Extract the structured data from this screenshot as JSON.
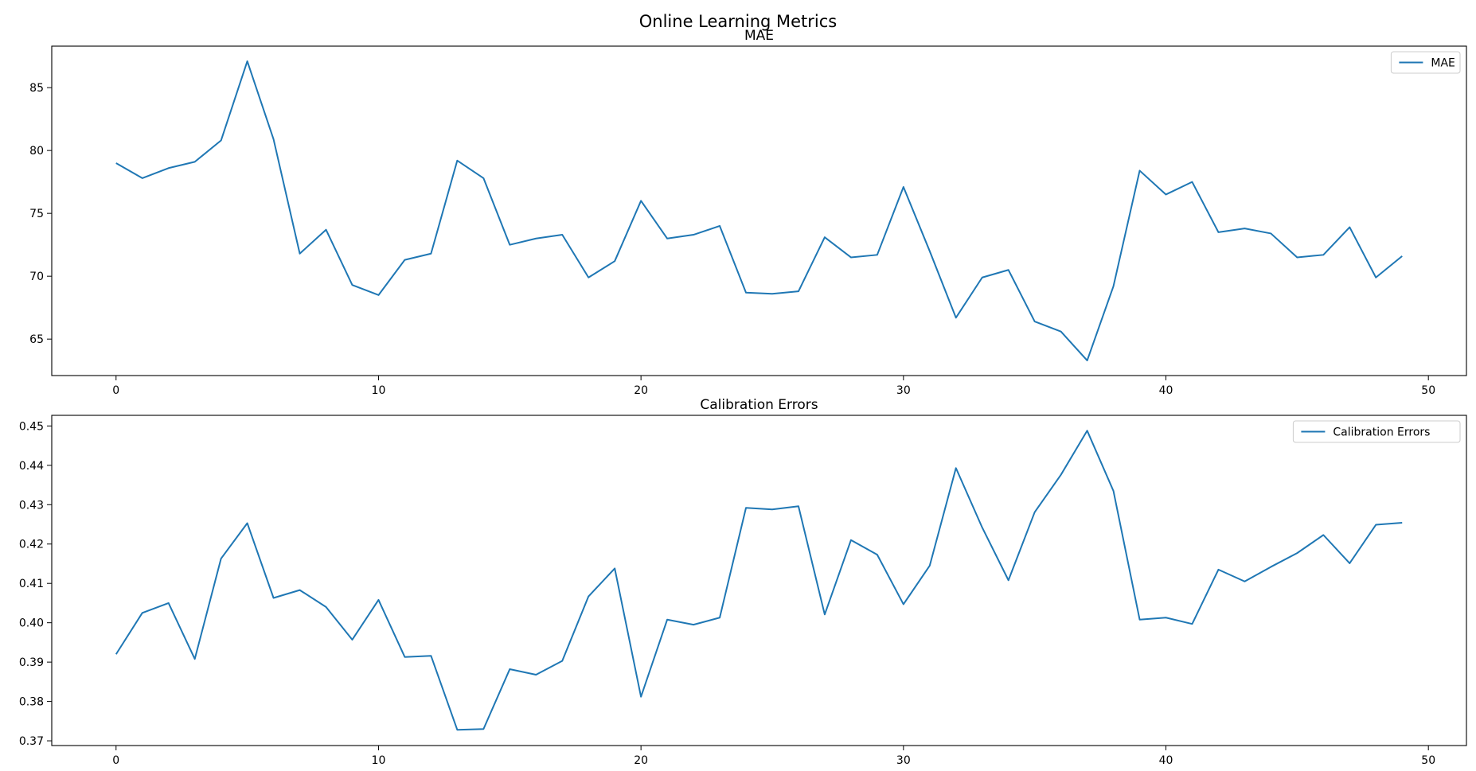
{
  "figure": {
    "title": "Online Learning Metrics"
  },
  "colors": {
    "line": "#1f77b4",
    "axis": "#000000",
    "background": "#ffffff"
  },
  "chart_data": [
    {
      "type": "line",
      "title": "MAE",
      "xlabel": "",
      "ylabel": "",
      "xlim": [
        -2.45,
        51.45
      ],
      "ylim": [
        62.1,
        88.3
      ],
      "xticks": [
        0,
        10,
        20,
        30,
        40,
        50
      ],
      "yticks": [
        65,
        70,
        75,
        80,
        85
      ],
      "ytick_labels": [
        "65",
        "70",
        "75",
        "80",
        "85"
      ],
      "grid": false,
      "legend": "top-right",
      "series": [
        {
          "name": "MAE",
          "x": [
            0,
            1,
            2,
            3,
            4,
            5,
            6,
            7,
            8,
            9,
            10,
            11,
            12,
            13,
            14,
            15,
            16,
            17,
            18,
            19,
            20,
            21,
            22,
            23,
            24,
            25,
            26,
            27,
            28,
            29,
            30,
            31,
            32,
            33,
            34,
            35,
            36,
            37,
            38,
            39,
            40,
            41,
            42,
            43,
            44,
            45,
            46,
            47,
            48,
            49
          ],
          "values": [
            79.0,
            77.8,
            78.6,
            79.1,
            80.8,
            87.1,
            80.9,
            71.8,
            73.7,
            69.3,
            68.5,
            71.3,
            71.8,
            79.2,
            77.8,
            72.5,
            73.0,
            73.3,
            69.9,
            71.2,
            76.0,
            73.0,
            73.3,
            74.0,
            68.7,
            68.6,
            68.8,
            73.1,
            71.5,
            71.7,
            77.1,
            72.0,
            66.7,
            69.9,
            70.5,
            66.4,
            65.6,
            63.3,
            69.2,
            78.4,
            76.5,
            77.5,
            73.5,
            73.8,
            73.4,
            71.5,
            71.7,
            73.9,
            69.9,
            71.6
          ]
        }
      ]
    },
    {
      "type": "line",
      "title": "Calibration Errors",
      "xlabel": "",
      "ylabel": "",
      "xlim": [
        -2.45,
        51.45
      ],
      "ylim": [
        0.3688,
        0.4527
      ],
      "xticks": [
        0,
        10,
        20,
        30,
        40,
        50
      ],
      "yticks": [
        0.37,
        0.38,
        0.39,
        0.4,
        0.41,
        0.42,
        0.43,
        0.44,
        0.45
      ],
      "ytick_labels": [
        "0.37",
        "0.38",
        "0.39",
        "0.40",
        "0.41",
        "0.42",
        "0.43",
        "0.44",
        "0.45"
      ],
      "grid": false,
      "legend": "top-right",
      "series": [
        {
          "name": "Calibration Errors",
          "x": [
            0,
            1,
            2,
            3,
            4,
            5,
            6,
            7,
            8,
            9,
            10,
            11,
            12,
            13,
            14,
            15,
            16,
            17,
            18,
            19,
            20,
            21,
            22,
            23,
            24,
            25,
            26,
            27,
            28,
            29,
            30,
            31,
            32,
            33,
            34,
            35,
            36,
            37,
            38,
            39,
            40,
            41,
            42,
            43,
            44,
            45,
            46,
            47,
            48,
            49
          ],
          "values": [
            0.392,
            0.4025,
            0.405,
            0.3908,
            0.4163,
            0.4253,
            0.4063,
            0.4083,
            0.404,
            0.3957,
            0.4058,
            0.3913,
            0.3916,
            0.3728,
            0.373,
            0.3882,
            0.3868,
            0.3903,
            0.4067,
            0.4138,
            0.3812,
            0.4008,
            0.3995,
            0.4013,
            0.4292,
            0.4288,
            0.4296,
            0.4021,
            0.421,
            0.4173,
            0.4047,
            0.4145,
            0.4393,
            0.4242,
            0.4108,
            0.4281,
            0.4376,
            0.4488,
            0.4335,
            0.4008,
            0.4013,
            0.3997,
            0.4135,
            0.4105,
            0.4142,
            0.4177,
            0.4223,
            0.4151,
            0.4249,
            0.4254
          ]
        }
      ]
    }
  ]
}
